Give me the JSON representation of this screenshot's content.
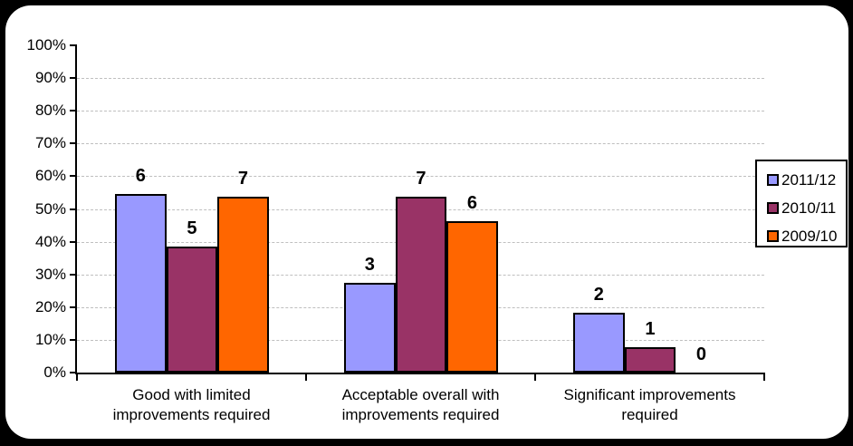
{
  "frame": {
    "background": "#000000",
    "panel_color": "#FFFFFF"
  },
  "chart_data": {
    "type": "bar",
    "title": "",
    "xlabel": "",
    "ylabel": "",
    "categories": [
      "Good with limited improvements required",
      "Acceptable overall with improvements required",
      "Significant improvements required"
    ],
    "category_label_lines": [
      [
        "Good with limited",
        "improvements required"
      ],
      [
        "Acceptable overall with",
        "improvements required"
      ],
      [
        "Significant improvements",
        "required"
      ]
    ],
    "series": [
      {
        "name": "2011/12",
        "color": "#9999FF",
        "counts": [
          6,
          3,
          2
        ],
        "percent_values": [
          54.5,
          27.3,
          18.2
        ]
      },
      {
        "name": "2010/11",
        "color": "#993366",
        "counts": [
          5,
          7,
          1
        ],
        "percent_values": [
          38.5,
          53.8,
          7.7
        ]
      },
      {
        "name": "2009/10",
        "color": "#FF6600",
        "counts": [
          7,
          6,
          0
        ],
        "percent_values": [
          53.8,
          46.2,
          0
        ]
      }
    ],
    "bar_label_source": "counts",
    "y_ticks": [
      "0%",
      "10%",
      "20%",
      "30%",
      "40%",
      "50%",
      "60%",
      "70%",
      "80%",
      "90%",
      "100%"
    ],
    "ylim": [
      0,
      100
    ],
    "grid": "horizontal dashed lines at 10%-90%, none at 0% or 100%",
    "legend": {
      "position": "right",
      "entries": [
        "2011/12",
        "2010/11",
        "2009/10"
      ]
    },
    "colors": {
      "axis": "#000000",
      "gridline": "#BFBFBF",
      "bar_border": "#000000",
      "text": "#000000"
    }
  }
}
